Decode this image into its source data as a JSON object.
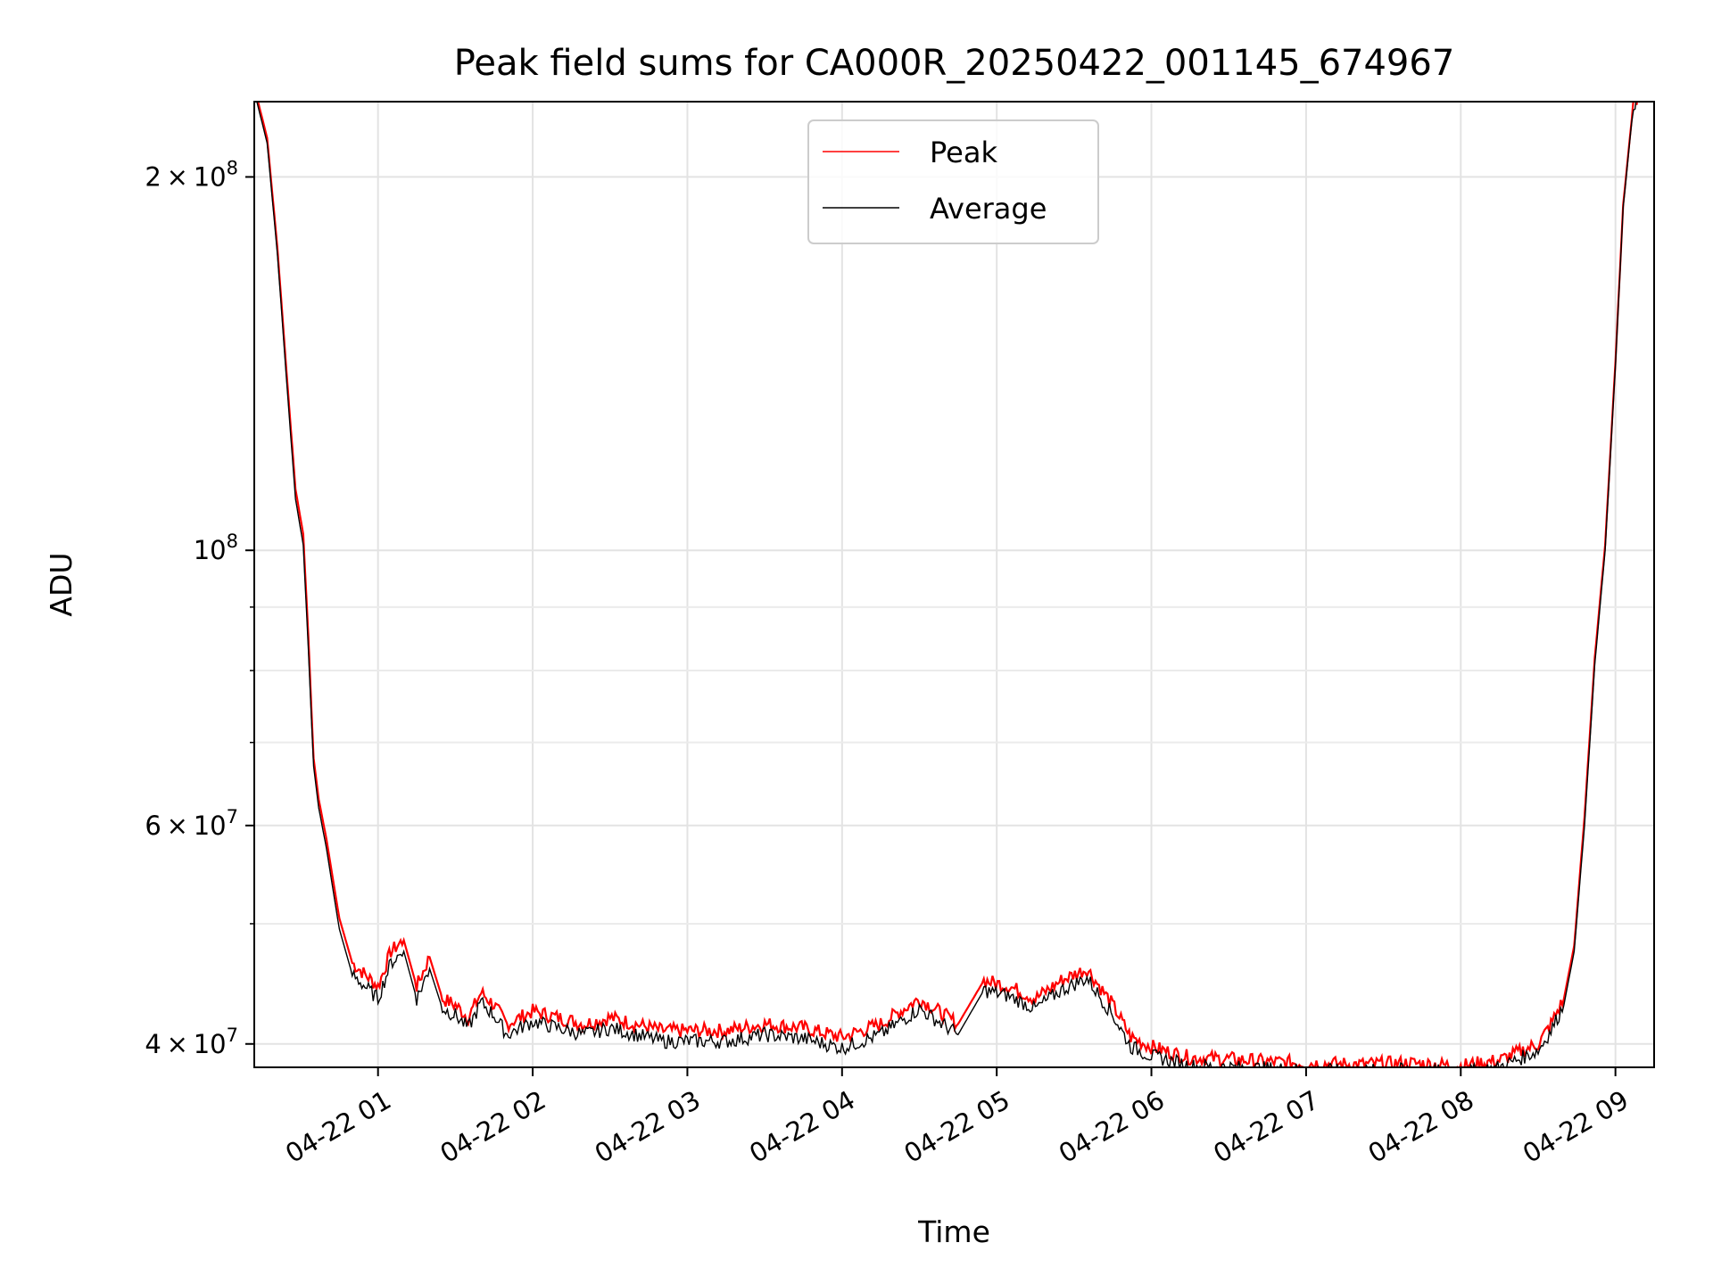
{
  "chart_data": {
    "type": "line",
    "title": "Peak field sums for CA000R_20250422_001145_674967",
    "xlabel": "Time",
    "ylabel": "ADU",
    "yscale": "log",
    "grid": true,
    "legend_position": "top-center",
    "xlim": [
      "2025-04-22 00:12",
      "2025-04-22 09:15"
    ],
    "ylim": [
      38300000,
      230000000
    ],
    "x_ticks": [
      {
        "value": "2025-04-22 01:00",
        "label": "04-22 01"
      },
      {
        "value": "2025-04-22 02:00",
        "label": "04-22 02"
      },
      {
        "value": "2025-04-22 03:00",
        "label": "04-22 03"
      },
      {
        "value": "2025-04-22 04:00",
        "label": "04-22 04"
      },
      {
        "value": "2025-04-22 05:00",
        "label": "04-22 05"
      },
      {
        "value": "2025-04-22 06:00",
        "label": "04-22 06"
      },
      {
        "value": "2025-04-22 07:00",
        "label": "04-22 07"
      },
      {
        "value": "2025-04-22 08:00",
        "label": "04-22 08"
      },
      {
        "value": "2025-04-22 09:00",
        "label": "04-22 09"
      }
    ],
    "y_major_ticks": [
      {
        "value": 40000000,
        "mantissa": "4",
        "exp": "7"
      },
      {
        "value": 60000000,
        "mantissa": "6",
        "exp": "7"
      },
      {
        "value": 100000000,
        "mantissa": "",
        "exp": "8"
      },
      {
        "value": 200000000,
        "mantissa": "2",
        "exp": "8"
      }
    ],
    "y_minor_ticks": [
      50000000,
      70000000,
      80000000,
      90000000
    ],
    "series": [
      {
        "name": "Peak",
        "color": "#ff0000",
        "x": [
          "2025-04-22 00:13",
          "2025-04-22 00:17",
          "2025-04-22 00:21",
          "2025-04-22 00:25",
          "2025-04-22 00:28",
          "2025-04-22 00:31",
          "2025-04-22 00:33",
          "2025-04-22 00:35",
          "2025-04-22 00:37",
          "2025-04-22 00:40",
          "2025-04-22 00:45",
          "2025-04-22 00:50",
          "2025-04-22 00:55",
          "2025-04-22 01:00",
          "2025-04-22 01:05",
          "2025-04-22 01:10",
          "2025-04-22 01:15",
          "2025-04-22 01:20",
          "2025-04-22 01:25",
          "2025-04-22 01:30",
          "2025-04-22 01:35",
          "2025-04-22 01:40",
          "2025-04-22 01:45",
          "2025-04-22 01:50",
          "2025-04-22 02:00",
          "2025-04-22 02:10",
          "2025-04-22 02:20",
          "2025-04-22 02:30",
          "2025-04-22 02:40",
          "2025-04-22 02:50",
          "2025-04-22 03:00",
          "2025-04-22 03:15",
          "2025-04-22 03:30",
          "2025-04-22 03:45",
          "2025-04-22 04:00",
          "2025-04-22 04:15",
          "2025-04-22 04:30",
          "2025-04-22 04:45",
          "2025-04-22 04:55",
          "2025-04-22 05:05",
          "2025-04-22 05:15",
          "2025-04-22 05:25",
          "2025-04-22 05:35",
          "2025-04-22 05:45",
          "2025-04-22 05:52",
          "2025-04-22 06:00",
          "2025-04-22 06:05",
          "2025-04-22 06:15",
          "2025-04-22 06:30",
          "2025-04-22 06:45",
          "2025-04-22 07:00",
          "2025-04-22 07:20",
          "2025-04-22 07:40",
          "2025-04-22 08:00",
          "2025-04-22 08:15",
          "2025-04-22 08:30",
          "2025-04-22 08:35",
          "2025-04-22 08:40",
          "2025-04-22 08:44",
          "2025-04-22 08:48",
          "2025-04-22 08:52",
          "2025-04-22 08:56",
          "2025-04-22 09:00",
          "2025-04-22 09:03",
          "2025-04-22 09:07",
          "2025-04-22 09:10"
        ],
        "y": [
          232000000,
          215000000,
          175000000,
          135000000,
          112000000,
          103000000,
          85000000,
          68000000,
          63000000,
          58500000,
          50500000,
          46500000,
          45500000,
          44500000,
          47500000,
          48500000,
          44500000,
          47000000,
          43500000,
          43000000,
          42000000,
          44000000,
          43000000,
          41500000,
          42500000,
          42000000,
          41500000,
          42000000,
          41500000,
          41000000,
          41000000,
          41000000,
          41500000,
          41200000,
          40500000,
          41500000,
          43500000,
          41500000,
          45000000,
          44500000,
          43500000,
          45000000,
          46000000,
          43000000,
          40500000,
          39800000,
          39500000,
          39000000,
          38900000,
          38700000,
          38600000,
          38500000,
          38600000,
          38400000,
          38800000,
          40000000,
          41500000,
          43500000,
          48000000,
          61000000,
          82000000,
          101000000,
          142000000,
          190000000,
          230000000,
          233000000
        ]
      },
      {
        "name": "Average",
        "color": "#000000",
        "x": [
          "2025-04-22 00:13",
          "2025-04-22 00:17",
          "2025-04-22 00:21",
          "2025-04-22 00:25",
          "2025-04-22 00:28",
          "2025-04-22 00:31",
          "2025-04-22 00:33",
          "2025-04-22 00:35",
          "2025-04-22 00:37",
          "2025-04-22 00:40",
          "2025-04-22 00:45",
          "2025-04-22 00:50",
          "2025-04-22 00:55",
          "2025-04-22 01:00",
          "2025-04-22 01:05",
          "2025-04-22 01:10",
          "2025-04-22 01:15",
          "2025-04-22 01:20",
          "2025-04-22 01:25",
          "2025-04-22 01:30",
          "2025-04-22 01:35",
          "2025-04-22 01:40",
          "2025-04-22 01:45",
          "2025-04-22 01:50",
          "2025-04-22 02:00",
          "2025-04-22 02:10",
          "2025-04-22 02:20",
          "2025-04-22 02:30",
          "2025-04-22 02:40",
          "2025-04-22 02:50",
          "2025-04-22 03:00",
          "2025-04-22 03:15",
          "2025-04-22 03:30",
          "2025-04-22 03:45",
          "2025-04-22 04:00",
          "2025-04-22 04:15",
          "2025-04-22 04:30",
          "2025-04-22 04:45",
          "2025-04-22 04:55",
          "2025-04-22 05:05",
          "2025-04-22 05:15",
          "2025-04-22 05:25",
          "2025-04-22 05:35",
          "2025-04-22 05:45",
          "2025-04-22 05:52",
          "2025-04-22 06:00",
          "2025-04-22 06:05",
          "2025-04-22 06:15",
          "2025-04-22 06:30",
          "2025-04-22 06:45",
          "2025-04-22 07:00",
          "2025-04-22 07:20",
          "2025-04-22 07:40",
          "2025-04-22 08:00",
          "2025-04-22 08:15",
          "2025-04-22 08:30",
          "2025-04-22 08:35",
          "2025-04-22 08:40",
          "2025-04-22 08:44",
          "2025-04-22 08:48",
          "2025-04-22 08:52",
          "2025-04-22 08:56",
          "2025-04-22 09:00",
          "2025-04-22 09:03",
          "2025-04-22 09:07",
          "2025-04-22 09:10"
        ],
        "y": [
          230000000,
          213000000,
          173000000,
          133000000,
          110000000,
          101000000,
          83000000,
          67000000,
          62000000,
          57500000,
          49500000,
          45500000,
          44500000,
          43500000,
          46500000,
          47500000,
          43500000,
          46000000,
          42700000,
          42200000,
          41200000,
          43200000,
          42200000,
          40700000,
          41700000,
          41200000,
          40700000,
          41200000,
          40700000,
          40200000,
          40200000,
          40200000,
          40700000,
          40400000,
          39700000,
          40700000,
          42700000,
          40700000,
          44200000,
          43700000,
          42700000,
          44200000,
          45200000,
          42200000,
          39800000,
          39100000,
          38900000,
          38400000,
          38300000,
          38200000,
          38100000,
          38000000,
          38100000,
          37900000,
          38300000,
          39500000,
          41000000,
          43000000,
          47500000,
          60000000,
          81000000,
          100000000,
          141000000,
          189000000,
          229000000,
          232000000
        ]
      }
    ]
  }
}
